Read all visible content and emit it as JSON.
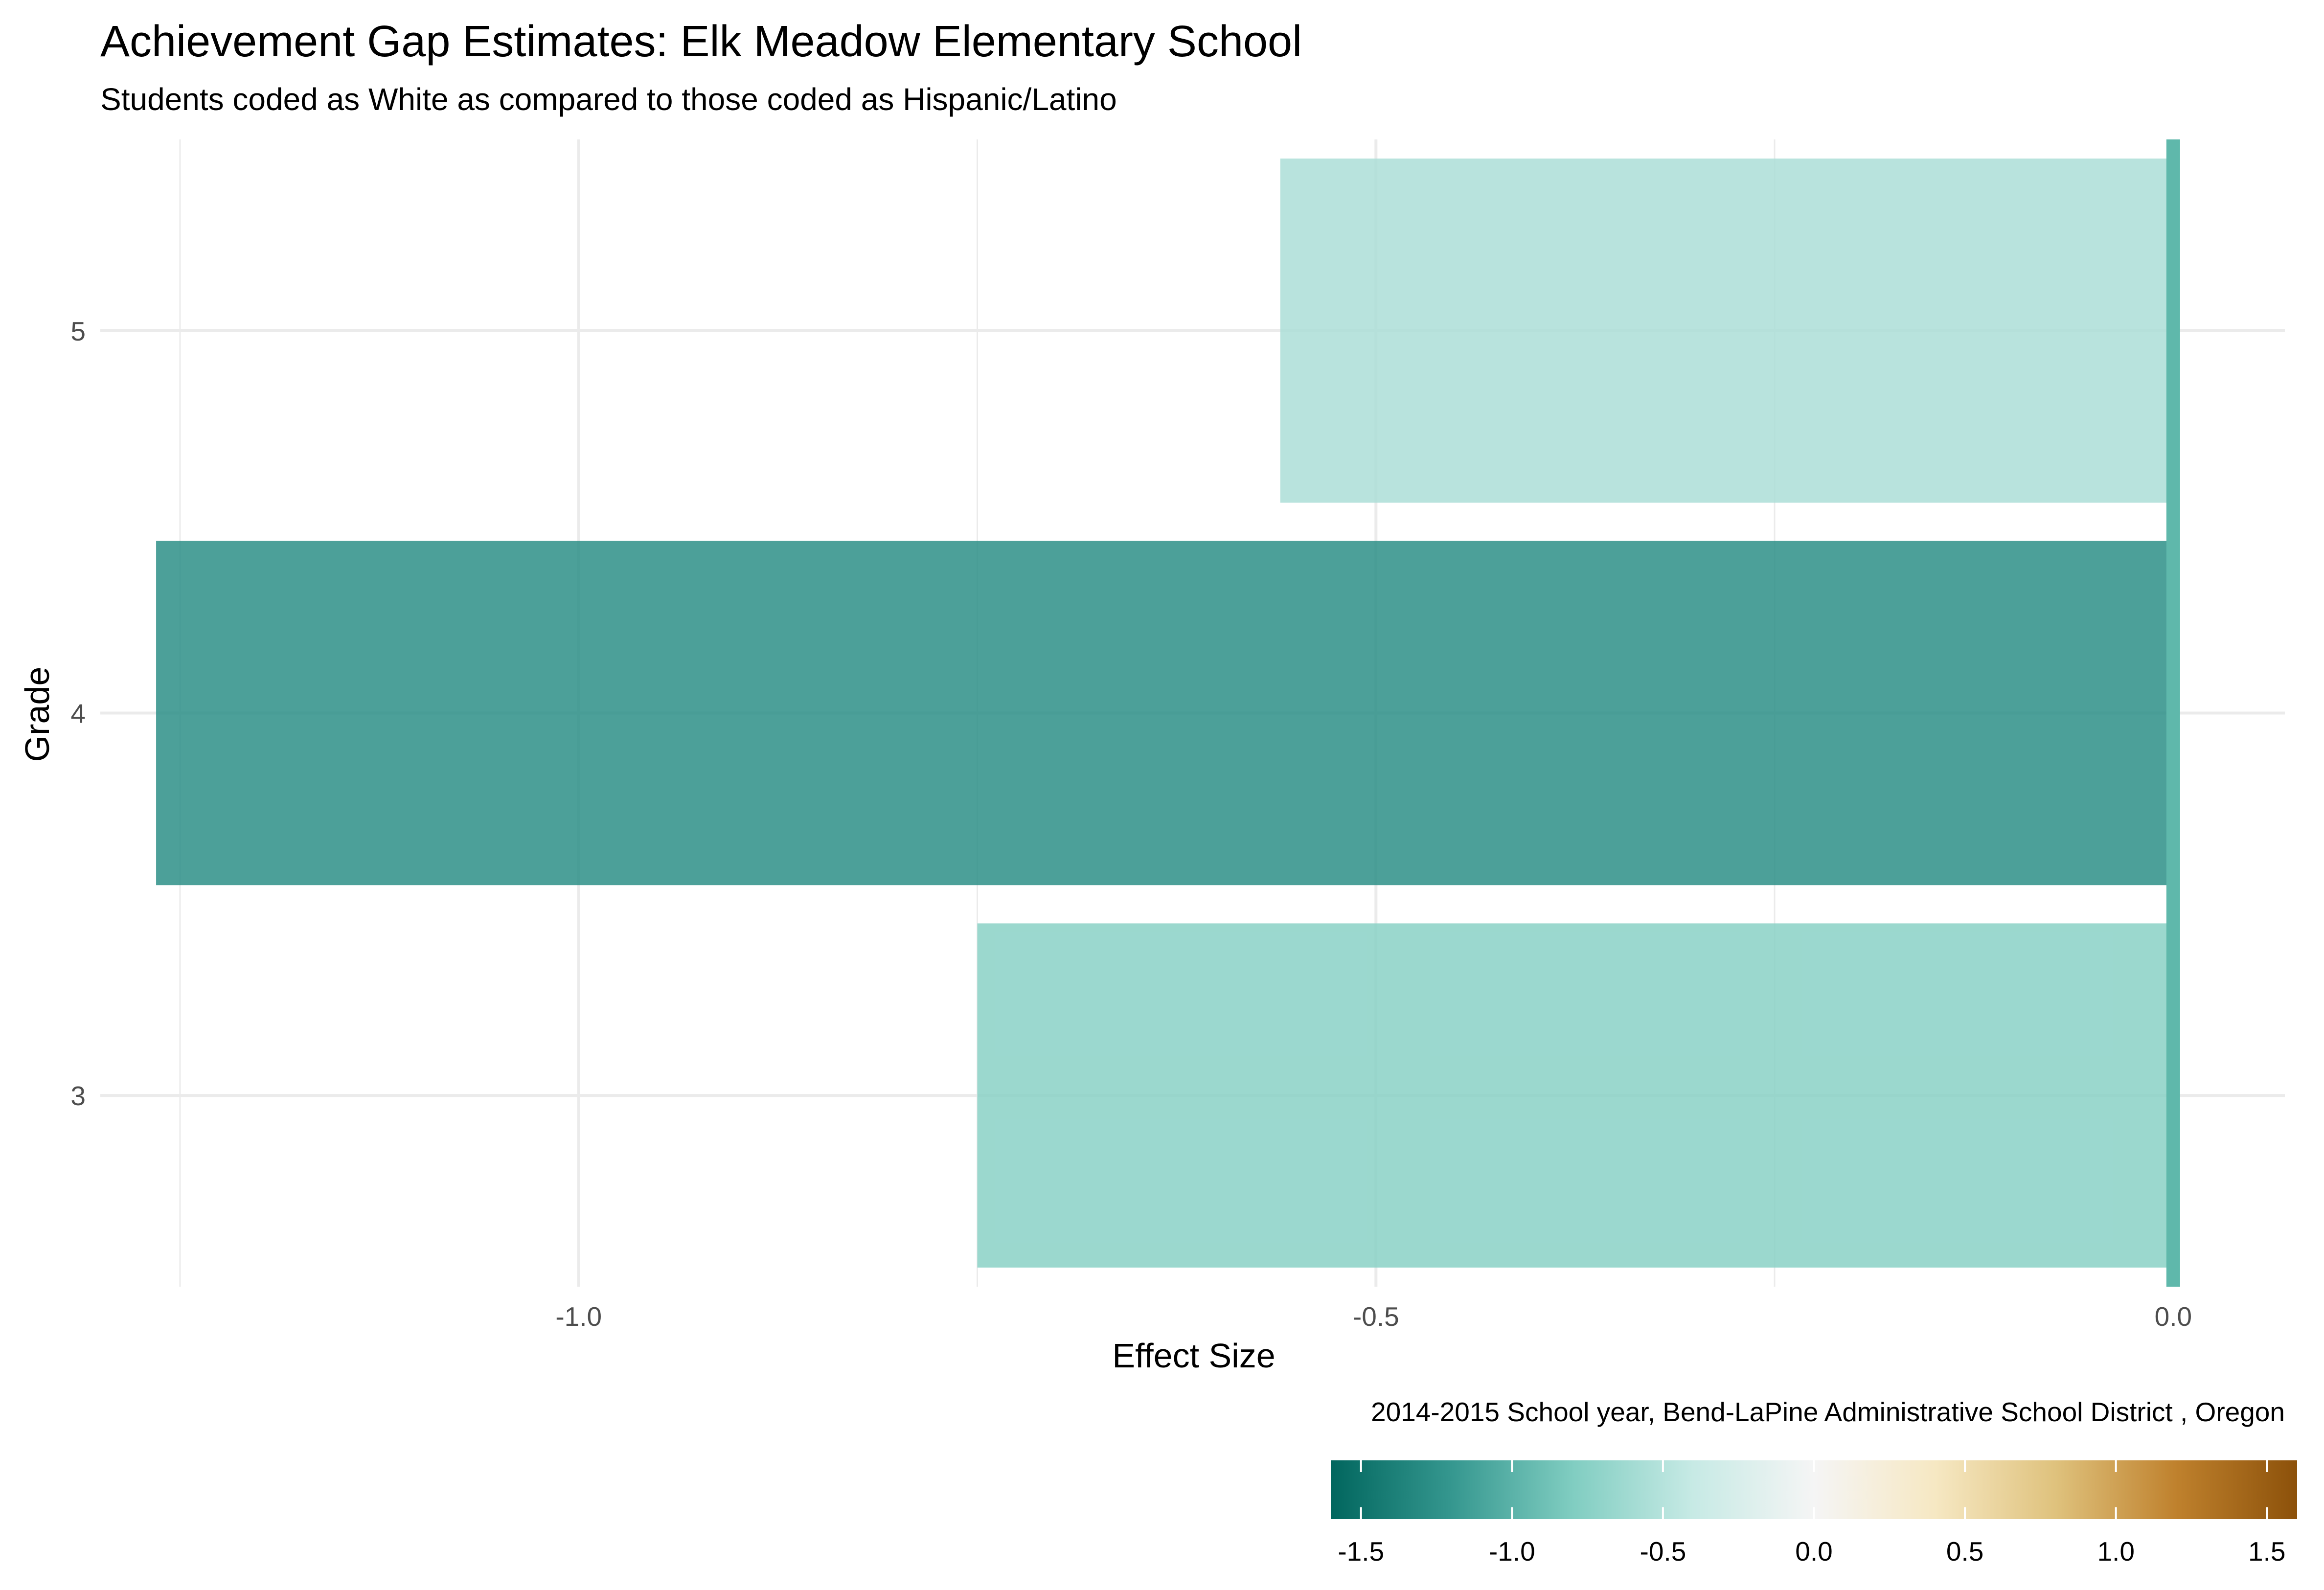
{
  "chart_data": {
    "type": "bar",
    "orientation": "horizontal",
    "title": "Achievement Gap Estimates: Elk Meadow Elementary School",
    "subtitle": "Students coded as White as compared to those coded as Hispanic/Latino",
    "xlabel": "Effect Size",
    "ylabel": "Grade",
    "caption": "2014-2015 School year,  Bend-LaPine Administrative School District , Oregon",
    "categories": [
      "3",
      "4",
      "5"
    ],
    "values": [
      -0.75,
      -1.265,
      -0.56
    ],
    "xlim": [
      -1.3,
      0.07
    ],
    "x_ticks": [
      -1.0,
      -0.5,
      0.0
    ],
    "x_tick_labels": [
      "-1.0",
      "-0.5",
      "0.0"
    ],
    "grid": true,
    "reference_line": {
      "value": 0.0,
      "color": "#5fb8ab"
    },
    "legend": {
      "type": "colorbar",
      "placement": "bottom-right",
      "range": [
        -1.6,
        1.6
      ],
      "ticks": [
        -1.5,
        -1.0,
        -0.5,
        0.0,
        0.5,
        1.0,
        1.5
      ],
      "tick_labels": [
        "-1.5",
        "-1.0",
        "-0.5",
        "0.0",
        "0.5",
        "1.0",
        "1.5"
      ],
      "palette": [
        "#01665e",
        "#35978f",
        "#80cdc1",
        "#c7eae5",
        "#f5f5f5",
        "#f6e8c3",
        "#dfc27d",
        "#bf812d",
        "#8c510a"
      ]
    }
  }
}
